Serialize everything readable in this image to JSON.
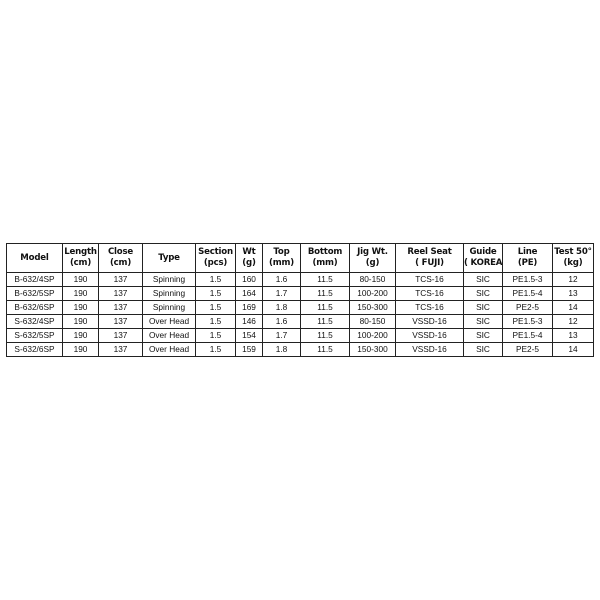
{
  "table": {
    "headers": [
      [
        "Model",
        ""
      ],
      [
        "Length",
        "(cm)"
      ],
      [
        "Close",
        "(cm)"
      ],
      [
        "Type",
        ""
      ],
      [
        "Section",
        "(pcs)"
      ],
      [
        "Wt",
        "(g)"
      ],
      [
        "Top",
        "(mm)"
      ],
      [
        "Bottom",
        "(mm)"
      ],
      [
        "Jig Wt.",
        "(g)"
      ],
      [
        "Reel Seat",
        "( FUJI)"
      ],
      [
        "Guide",
        "( KOREA)"
      ],
      [
        "Line",
        "(PE)"
      ],
      [
        "Test 50°",
        "(kg)"
      ]
    ],
    "rows": [
      [
        "B-632/4SP",
        "190",
        "137",
        "Spinning",
        "1.5",
        "160",
        "1.6",
        "11.5",
        "80-150",
        "TCS-16",
        "SIC",
        "PE1.5-3",
        "12"
      ],
      [
        "B-632/5SP",
        "190",
        "137",
        "Spinning",
        "1.5",
        "164",
        "1.7",
        "11.5",
        "100-200",
        "TCS-16",
        "SIC",
        "PE1.5-4",
        "13"
      ],
      [
        "B-632/6SP",
        "190",
        "137",
        "Spinning",
        "1.5",
        "169",
        "1.8",
        "11.5",
        "150-300",
        "TCS-16",
        "SIC",
        "PE2-5",
        "14"
      ],
      [
        "S-632/4SP",
        "190",
        "137",
        "Over Head",
        "1.5",
        "146",
        "1.6",
        "11.5",
        "80-150",
        "VSSD-16",
        "SIC",
        "PE1.5-3",
        "12"
      ],
      [
        "S-632/5SP",
        "190",
        "137",
        "Over Head",
        "1.5",
        "154",
        "1.7",
        "11.5",
        "100-200",
        "VSSD-16",
        "SIC",
        "PE1.5-4",
        "13"
      ],
      [
        "S-632/6SP",
        "190",
        "137",
        "Over Head",
        "1.5",
        "159",
        "1.8",
        "11.5",
        "150-300",
        "VSSD-16",
        "SIC",
        "PE2-5",
        "14"
      ]
    ]
  }
}
